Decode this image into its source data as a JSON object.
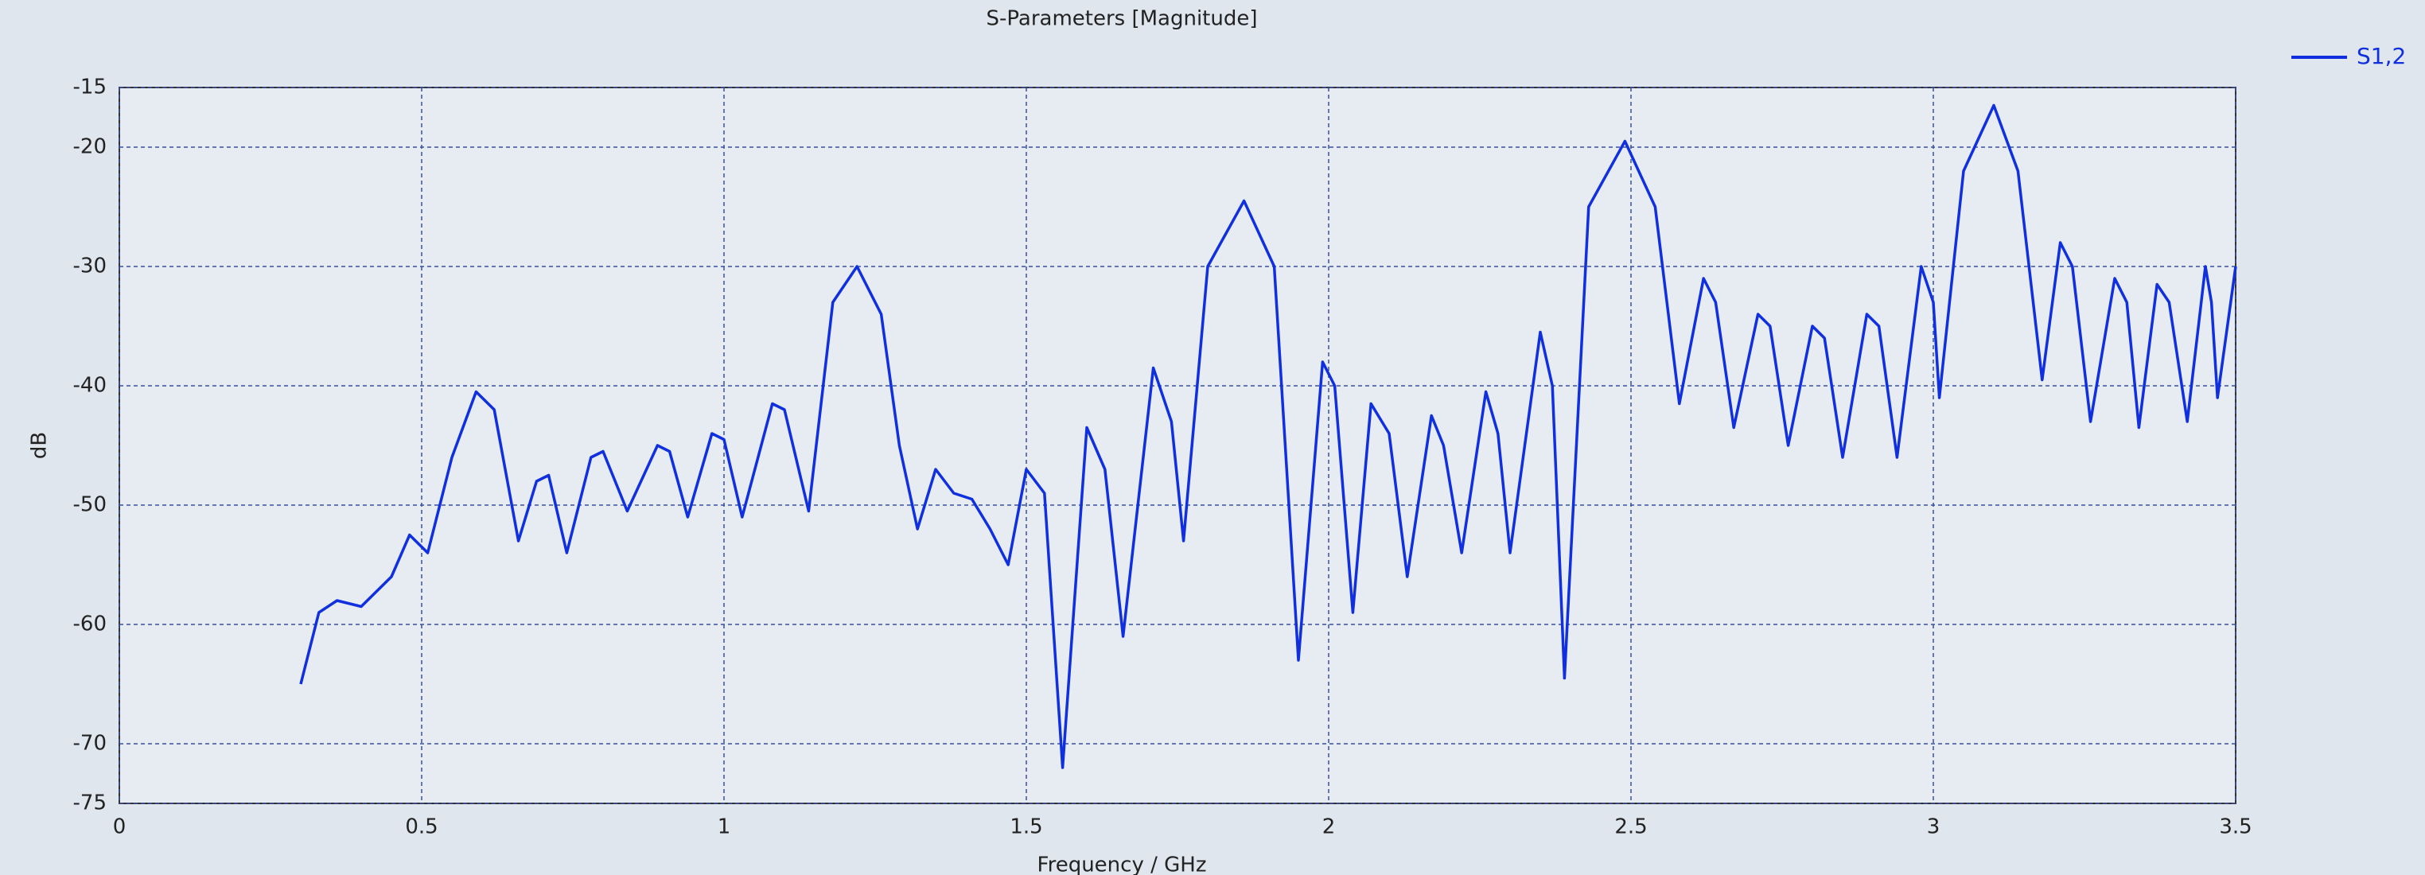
{
  "chart_data": {
    "type": "line",
    "title": "S-Parameters [Magnitude]",
    "x_label": "Frequency / GHz",
    "y_label": "dB",
    "x": [
      0.3,
      0.33,
      0.36,
      0.4,
      0.45,
      0.48,
      0.51,
      0.55,
      0.59,
      0.62,
      0.66,
      0.69,
      0.71,
      0.74,
      0.78,
      0.8,
      0.84,
      0.89,
      0.91,
      0.94,
      0.98,
      1.0,
      1.03,
      1.08,
      1.1,
      1.14,
      1.18,
      1.22,
      1.26,
      1.29,
      1.32,
      1.35,
      1.38,
      1.41,
      1.44,
      1.47,
      1.5,
      1.53,
      1.56,
      1.6,
      1.63,
      1.66,
      1.71,
      1.74,
      1.76,
      1.8,
      1.86,
      1.91,
      1.95,
      1.99,
      2.01,
      2.04,
      2.07,
      2.1,
      2.13,
      2.17,
      2.19,
      2.22,
      2.26,
      2.28,
      2.3,
      2.35,
      2.37,
      2.39,
      2.43,
      2.49,
      2.54,
      2.58,
      2.62,
      2.64,
      2.67,
      2.71,
      2.73,
      2.76,
      2.8,
      2.82,
      2.85,
      2.89,
      2.91,
      2.94,
      2.98,
      3.0,
      3.01,
      3.05,
      3.1,
      3.14,
      3.18,
      3.21,
      3.23,
      3.26,
      3.3,
      3.32,
      3.34,
      3.37,
      3.39,
      3.42,
      3.45,
      3.46,
      3.47,
      3.5
    ],
    "series": [
      {
        "name": "S1,2",
        "color": "#1030e0",
        "values": [
          -65,
          -59,
          -58,
          -58.5,
          -56,
          -52.5,
          -54,
          -46,
          -40.5,
          -42,
          -53,
          -48,
          -47.5,
          -54,
          -46,
          -45.5,
          -50.5,
          -45,
          -45.5,
          -51,
          -44,
          -44.5,
          -51,
          -41.5,
          -42,
          -50.5,
          -33,
          -30,
          -34,
          -45,
          -52,
          -47,
          -49,
          -49.5,
          -52,
          -55,
          -47,
          -49,
          -72,
          -43.5,
          -47,
          -61,
          -38.5,
          -43,
          -53,
          -30,
          -24.5,
          -30,
          -63,
          -38,
          -40,
          -59,
          -41.5,
          -44,
          -56,
          -42.5,
          -45,
          -54,
          -40.5,
          -44,
          -54,
          -35.5,
          -40,
          -64.5,
          -25,
          -19.5,
          -25,
          -41.5,
          -31,
          -33,
          -43.5,
          -34,
          -35,
          -45,
          -35,
          -36,
          -46,
          -34,
          -35,
          -46,
          -30,
          -33,
          -41,
          -22,
          -16.5,
          -22,
          -39.5,
          -28,
          -30,
          -43,
          -31,
          -33,
          -43.5,
          -31.5,
          -33,
          -43,
          -30,
          -33,
          -41,
          -30
        ]
      }
    ],
    "xlim": [
      0,
      3.5
    ],
    "xticks": [
      0,
      0.5,
      1,
      1.5,
      2,
      2.5,
      3,
      3.5
    ],
    "ylim": [
      -75,
      -15
    ],
    "yticks": [
      -15,
      -20,
      -30,
      -40,
      -50,
      -60,
      -70,
      -75
    ],
    "grid": true,
    "legend": "top-right"
  }
}
